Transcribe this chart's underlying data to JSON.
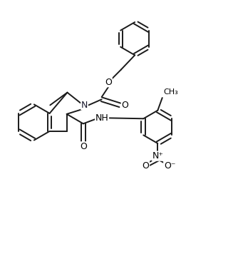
{
  "background_color": "#ffffff",
  "line_color": "#1a1a1a",
  "line_width": 1.4,
  "figsize": [
    3.27,
    3.91
  ],
  "dpi": 100,
  "xlim": [
    0,
    10
  ],
  "ylim": [
    0,
    12
  ]
}
